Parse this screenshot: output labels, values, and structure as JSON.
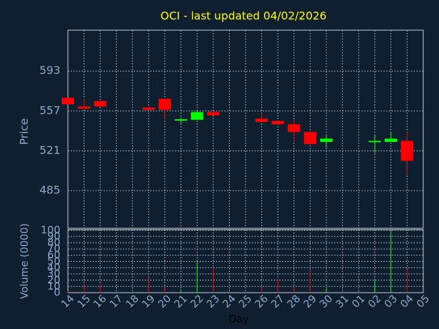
{
  "chart_data": {
    "type": "candlestick",
    "title": "OCI - last updated 04/02/2026",
    "y_label": "Price",
    "volume_label": "Volume (0000)",
    "x_label": "Day",
    "categories": [
      "14",
      "15",
      "16",
      "17",
      "18",
      "19",
      "20",
      "21",
      "22",
      "23",
      "24",
      "25",
      "26",
      "27",
      "28",
      "29",
      "30",
      "31",
      "01",
      "02",
      "03",
      "04",
      "05"
    ],
    "open": [
      569,
      561,
      566,
      null,
      null,
      560,
      568,
      549,
      549,
      556,
      null,
      null,
      550,
      548,
      545,
      538,
      529,
      null,
      null,
      529.5,
      529,
      530,
      null
    ],
    "high": [
      569,
      568,
      566,
      null,
      null,
      561,
      568,
      551,
      557,
      556,
      null,
      null,
      555,
      548,
      549,
      539,
      535,
      null,
      null,
      535,
      538,
      538,
      null
    ],
    "low": [
      563,
      559,
      561,
      null,
      null,
      558,
      550,
      545,
      549,
      553,
      null,
      null,
      547,
      545,
      529,
      527,
      524,
      null,
      null,
      519,
      529,
      499,
      null
    ],
    "close": [
      563,
      559,
      561,
      null,
      null,
      558,
      558,
      549.5,
      556,
      553,
      null,
      null,
      547,
      545,
      538,
      527,
      532,
      null,
      null,
      530,
      532,
      512,
      null
    ],
    "volume": [
      2,
      12,
      14,
      null,
      null,
      25,
      10,
      5,
      50,
      40,
      null,
      null,
      10,
      22,
      10,
      37,
      8,
      null,
      null,
      20,
      100,
      38,
      null
    ],
    "up_color": "#00ff00",
    "down_color": "#ff0000",
    "ylim": [
      451,
      630
    ],
    "yticks": [
      485,
      521,
      557,
      593
    ],
    "vlim": [
      0,
      101
    ],
    "vticks": [
      0,
      10,
      20,
      30,
      40,
      50,
      60,
      70,
      80,
      90,
      100
    ],
    "grid": true
  }
}
